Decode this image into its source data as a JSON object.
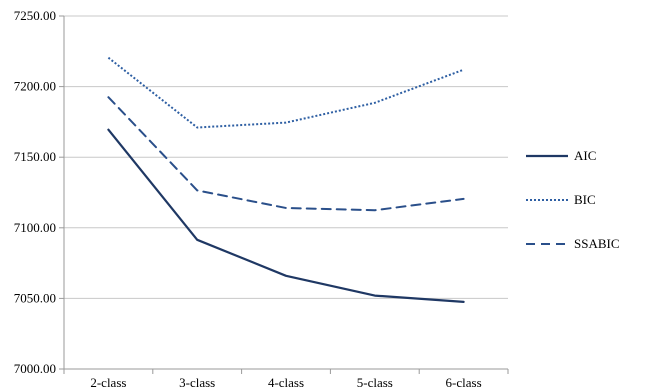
{
  "chart_data": {
    "type": "line",
    "title": "",
    "xlabel": "",
    "ylabel": "",
    "categories": [
      "2-class",
      "3-class",
      "4-class",
      "5-class",
      "6-class"
    ],
    "ylim": [
      7000,
      7250
    ],
    "yticks": [
      "7000.00",
      "7050.00",
      "7100.00",
      "7150.00",
      "7200.00",
      "7250.00"
    ],
    "grid": "horizontal",
    "legend_position": "right",
    "series": [
      {
        "name": "AIC",
        "values": [
          7169.5,
          7091.5,
          7066.0,
          7052.0,
          7047.5
        ],
        "color": "#1f3864",
        "style": "solid"
      },
      {
        "name": "BIC",
        "values": [
          7220.5,
          7171.0,
          7174.5,
          7188.5,
          7212.0
        ],
        "color": "#2e5fa3",
        "style": "dotted"
      },
      {
        "name": "SSABIC",
        "values": [
          7192.5,
          7126.5,
          7114.0,
          7112.5,
          7120.5
        ],
        "color": "#2a4f8a",
        "style": "dashed"
      }
    ]
  }
}
